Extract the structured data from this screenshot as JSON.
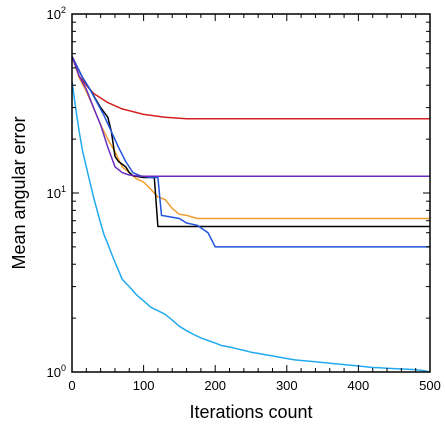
{
  "chart_data": {
    "type": "line",
    "title": "",
    "xlabel": "Iterations count",
    "ylabel": "Mean angular error",
    "xlim": [
      0,
      500
    ],
    "ylim": [
      1,
      100
    ],
    "yscale": "log",
    "grid": false,
    "legend": "none",
    "x_ticks": [
      0,
      100,
      200,
      300,
      400,
      500
    ],
    "y_ticks": [
      {
        "value": 1,
        "base": "10",
        "exp": "0"
      },
      {
        "value": 10,
        "base": "10",
        "exp": "1"
      },
      {
        "value": 100,
        "base": "10",
        "exp": "2"
      }
    ],
    "series": [
      {
        "color": "#d42020",
        "points": [
          [
            0,
            58
          ],
          [
            10,
            45
          ],
          [
            20,
            40
          ],
          [
            30,
            36
          ],
          [
            50,
            32
          ],
          [
            70,
            29.5
          ],
          [
            100,
            27.5
          ],
          [
            130,
            26.5
          ],
          [
            160,
            26
          ],
          [
            200,
            26
          ],
          [
            300,
            26
          ],
          [
            400,
            26
          ],
          [
            500,
            26
          ]
        ]
      },
      {
        "color": "#f0a030",
        "points": [
          [
            0,
            58
          ],
          [
            10,
            44
          ],
          [
            20,
            37
          ],
          [
            30,
            30
          ],
          [
            40,
            24
          ],
          [
            50,
            20
          ],
          [
            60,
            17
          ],
          [
            70,
            14
          ],
          [
            80,
            13
          ],
          [
            90,
            12
          ],
          [
            100,
            11.5
          ],
          [
            110,
            10.5
          ],
          [
            120,
            9.5
          ],
          [
            130,
            9.2
          ],
          [
            140,
            8.2
          ],
          [
            150,
            7.6
          ],
          [
            160,
            7.5
          ],
          [
            175,
            7.2
          ],
          [
            200,
            7.2
          ],
          [
            300,
            7.2
          ],
          [
            400,
            7.2
          ],
          [
            500,
            7.2
          ]
        ]
      },
      {
        "color": "#000000",
        "points": [
          [
            0,
            58
          ],
          [
            15,
            44
          ],
          [
            25,
            38
          ],
          [
            40,
            30
          ],
          [
            50,
            26.5
          ],
          [
            55,
            22
          ],
          [
            60,
            16
          ],
          [
            65,
            15
          ],
          [
            70,
            14.5
          ],
          [
            75,
            14
          ],
          [
            80,
            13
          ],
          [
            85,
            12.5
          ],
          [
            100,
            12.2
          ],
          [
            115,
            12.2
          ],
          [
            120,
            6.5
          ],
          [
            200,
            6.5
          ],
          [
            300,
            6.5
          ],
          [
            400,
            6.5
          ],
          [
            500,
            6.5
          ]
        ]
      },
      {
        "color": "#2255dd",
        "points": [
          [
            0,
            58
          ],
          [
            15,
            44
          ],
          [
            25,
            38
          ],
          [
            35,
            32
          ],
          [
            45,
            27
          ],
          [
            55,
            22
          ],
          [
            65,
            18
          ],
          [
            75,
            15
          ],
          [
            85,
            13
          ],
          [
            95,
            12.5
          ],
          [
            110,
            12.2
          ],
          [
            120,
            12.2
          ],
          [
            125,
            7.5
          ],
          [
            150,
            7.2
          ],
          [
            160,
            6.8
          ],
          [
            175,
            6.6
          ],
          [
            190,
            6
          ],
          [
            200,
            5
          ],
          [
            300,
            5
          ],
          [
            400,
            5
          ],
          [
            500,
            5
          ]
        ]
      },
      {
        "color": "#6a2dbe",
        "points": [
          [
            0,
            58
          ],
          [
            10,
            45
          ],
          [
            20,
            38
          ],
          [
            30,
            30
          ],
          [
            40,
            24
          ],
          [
            50,
            18
          ],
          [
            60,
            14
          ],
          [
            70,
            13
          ],
          [
            80,
            12.6
          ],
          [
            95,
            12.4
          ],
          [
            110,
            12.4
          ],
          [
            150,
            12.4
          ],
          [
            200,
            12.4
          ],
          [
            300,
            12.4
          ],
          [
            400,
            12.4
          ],
          [
            500,
            12.4
          ]
        ]
      },
      {
        "color": "#22aaee",
        "points": [
          [
            0,
            42
          ],
          [
            5,
            30
          ],
          [
            10,
            22
          ],
          [
            15,
            17
          ],
          [
            20,
            14
          ],
          [
            25,
            11.5
          ],
          [
            30,
            9.5
          ],
          [
            35,
            8
          ],
          [
            40,
            6.8
          ],
          [
            45,
            5.8
          ],
          [
            50,
            5.2
          ],
          [
            55,
            4.6
          ],
          [
            60,
            4.1
          ],
          [
            65,
            3.7
          ],
          [
            70,
            3.3
          ],
          [
            80,
            3
          ],
          [
            90,
            2.7
          ],
          [
            100,
            2.5
          ],
          [
            110,
            2.3
          ],
          [
            120,
            2.2
          ],
          [
            130,
            2.1
          ],
          [
            140,
            1.95
          ],
          [
            150,
            1.8
          ],
          [
            160,
            1.7
          ],
          [
            170,
            1.62
          ],
          [
            180,
            1.55
          ],
          [
            190,
            1.5
          ],
          [
            200,
            1.45
          ],
          [
            210,
            1.4
          ],
          [
            220,
            1.38
          ],
          [
            230,
            1.35
          ],
          [
            240,
            1.32
          ],
          [
            250,
            1.29
          ],
          [
            260,
            1.27
          ],
          [
            270,
            1.25
          ],
          [
            280,
            1.23
          ],
          [
            290,
            1.21
          ],
          [
            300,
            1.19
          ],
          [
            310,
            1.17
          ],
          [
            320,
            1.16
          ],
          [
            330,
            1.15
          ],
          [
            340,
            1.14
          ],
          [
            350,
            1.13
          ],
          [
            360,
            1.12
          ],
          [
            370,
            1.11
          ],
          [
            380,
            1.1
          ],
          [
            390,
            1.09
          ],
          [
            400,
            1.08
          ],
          [
            410,
            1.07
          ],
          [
            420,
            1.06
          ],
          [
            430,
            1.055
          ],
          [
            440,
            1.05
          ],
          [
            450,
            1.045
          ],
          [
            460,
            1.04
          ],
          [
            470,
            1.035
          ],
          [
            480,
            1.03
          ],
          [
            490,
            1.02
          ],
          [
            500,
            1.0
          ]
        ]
      }
    ]
  }
}
